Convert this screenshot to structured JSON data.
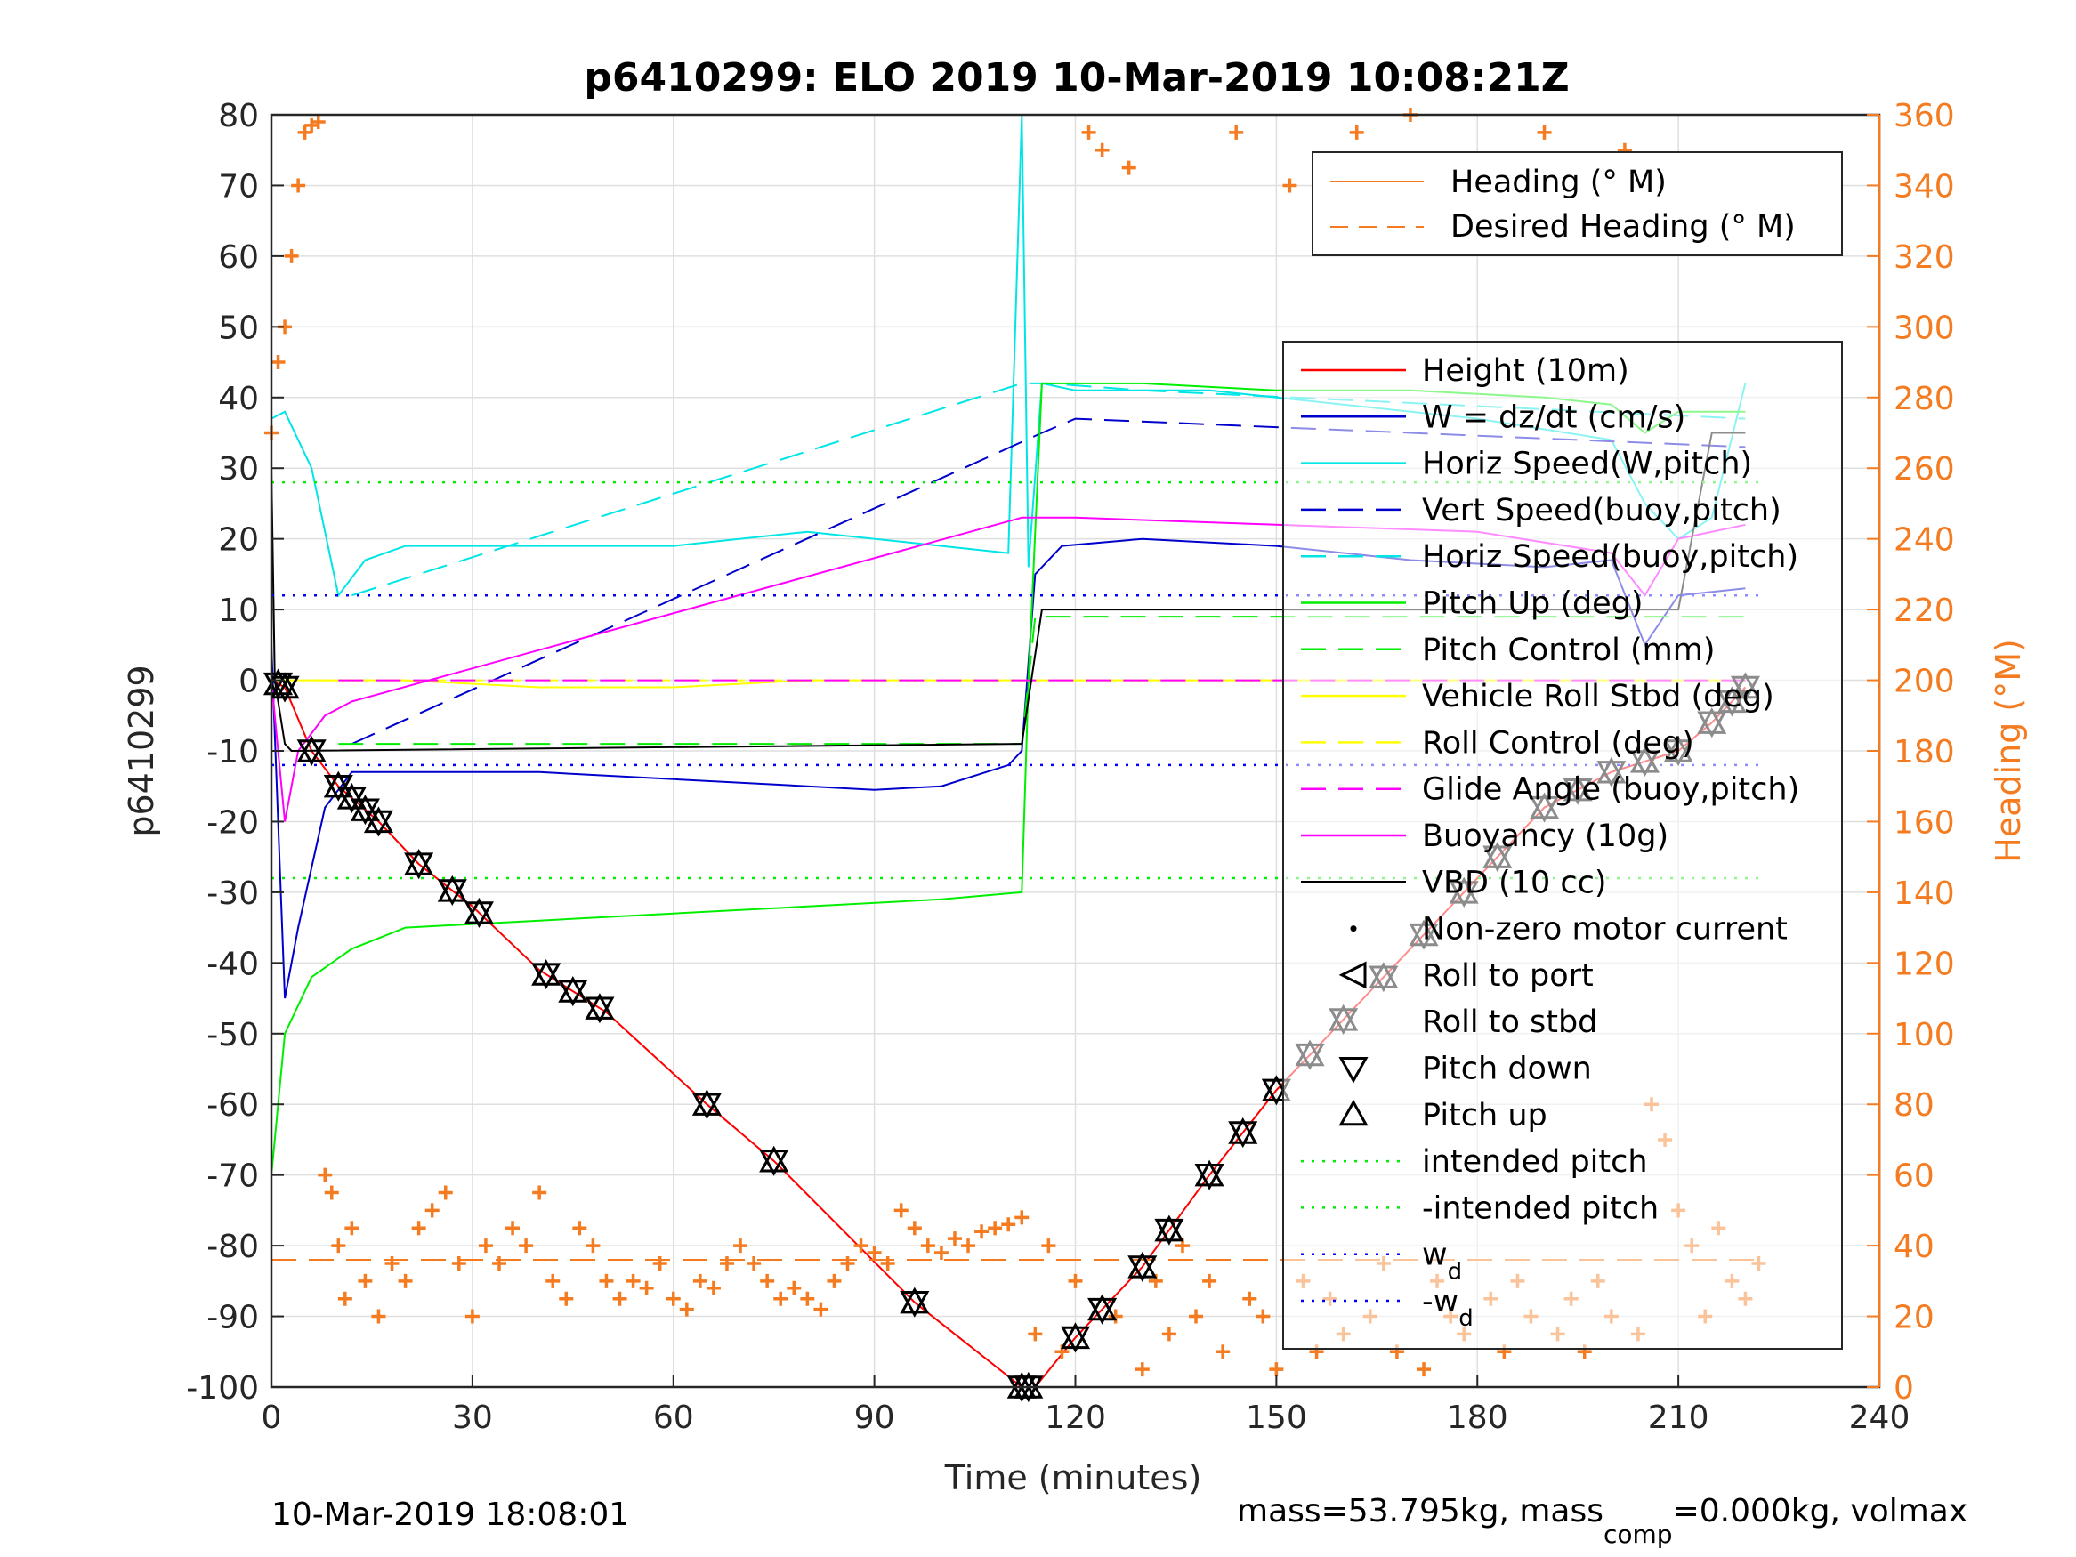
{
  "chart_data": {
    "type": "line",
    "title": "p6410299: ELO 2019 10-Mar-2019 10:08:21Z",
    "xlabel": "Time (minutes)",
    "ylabel": "p6410299",
    "y2label": "Heading (°M)",
    "xlim": [
      0,
      240
    ],
    "ylim": [
      -100,
      80
    ],
    "y2lim": [
      0,
      360
    ],
    "xticks": [
      "0",
      "30",
      "60",
      "90",
      "120",
      "150",
      "180",
      "210",
      "240"
    ],
    "yticks": [
      "-100",
      "-90",
      "-80",
      "-70",
      "-60",
      "-50",
      "-40",
      "-30",
      "-20",
      "-10",
      "0",
      "10",
      "20",
      "30",
      "40",
      "50",
      "60",
      "70",
      "80"
    ],
    "y2ticks": [
      "0",
      "20",
      "40",
      "60",
      "80",
      "100",
      "120",
      "140",
      "160",
      "180",
      "200",
      "220",
      "240",
      "260",
      "280",
      "300",
      "320",
      "340",
      "360"
    ],
    "grid": true,
    "legend_top": [
      "Heading (° M)",
      "Desired Heading (° M)"
    ],
    "legend_main": [
      "Height (10m)",
      "W = dz/dt (cm/s)",
      "Horiz Speed(W,pitch)",
      "Vert Speed(buoy,pitch)",
      "Horiz Speed(buoy,pitch)",
      "Pitch Up (deg)",
      "Pitch Control (mm)",
      "Vehicle Roll Stbd (deg)",
      "Roll Control (deg)",
      "Glide Angle (buoy,pitch)",
      "Buoyancy (10g)",
      "VBD (10 cc)",
      "Non-zero motor current",
      "Roll to port",
      "Roll to stbd",
      "Pitch down",
      "Pitch up",
      "intended pitch",
      "-intended pitch",
      "w",
      "-w"
    ],
    "legend_sub": [
      "d",
      "d"
    ],
    "footer_left": "10-Mar-2019 18:08:01",
    "footer_right_a": "mass=53.795kg, mass",
    "footer_right_sub": "comp",
    "footer_right_b": "=0.000kg, volmax",
    "series": [
      {
        "name": "Height (10m)",
        "color": "#ff0000",
        "style": "solid",
        "x": [
          0,
          2,
          6,
          10,
          16,
          22,
          30,
          40,
          50,
          65,
          75,
          96,
          112,
          114,
          120,
          130,
          140,
          150,
          160,
          170,
          180,
          190,
          200,
          210,
          215,
          220
        ],
        "y": [
          0,
          -1,
          -10,
          -15,
          -20,
          -26,
          -32,
          -41,
          -47,
          -60,
          -68,
          -88,
          -100,
          -100,
          -93,
          -83,
          -70,
          -58,
          -48,
          -38,
          -28,
          -18,
          -13,
          -10,
          -6,
          -1
        ]
      },
      {
        "name": "W = dz/dt (cm/s)",
        "color": "#0000cc",
        "style": "solid",
        "x": [
          0,
          2,
          4,
          8,
          12,
          20,
          40,
          60,
          70,
          80,
          90,
          100,
          110,
          112,
          114,
          118,
          130,
          150,
          170,
          190,
          200,
          205,
          210,
          220
        ],
        "y": [
          5,
          -45,
          -35,
          -18,
          -13,
          -13,
          -13,
          -14,
          -14.5,
          -15,
          -15.5,
          -15,
          -12,
          -10,
          15,
          19,
          20,
          19,
          17,
          16,
          17,
          5,
          12,
          13
        ]
      },
      {
        "name": "Horiz Speed(W,pitch)",
        "color": "#00e5e5",
        "style": "solid",
        "x": [
          0,
          2,
          6,
          10,
          14,
          20,
          40,
          60,
          80,
          100,
          110,
          112,
          113,
          115,
          120,
          140,
          160,
          180,
          200,
          205,
          210,
          215,
          220
        ],
        "y": [
          37,
          38,
          30,
          12,
          17,
          19,
          19,
          19,
          21,
          19,
          18,
          80,
          16,
          42,
          41,
          41,
          39,
          37,
          34,
          25,
          20,
          23,
          42
        ]
      },
      {
        "name": "Vert Speed(buoy,pitch)",
        "color": "#0000cc",
        "style": "dashed",
        "x": [
          12,
          115,
          120,
          220
        ],
        "y": [
          -9,
          35,
          37,
          33
        ]
      },
      {
        "name": "Horiz Speed(buoy,pitch)",
        "color": "#00e5e5",
        "style": "dashed",
        "x": [
          12,
          112,
          116,
          130,
          220
        ],
        "y": [
          12,
          42,
          42,
          41,
          37
        ]
      },
      {
        "name": "Pitch Up (deg)",
        "color": "#00ee00",
        "style": "solid",
        "x": [
          0,
          2,
          6,
          12,
          20,
          40,
          60,
          80,
          100,
          112,
          113,
          115,
          130,
          150,
          170,
          190,
          200,
          205,
          210,
          220
        ],
        "y": [
          -70,
          -50,
          -42,
          -38,
          -35,
          -34,
          -33,
          -32,
          -31,
          -30,
          0,
          42,
          42,
          41,
          41,
          40,
          39,
          35,
          38,
          38
        ]
      },
      {
        "name": "Pitch Control (mm)",
        "color": "#00ee00",
        "style": "dashed",
        "x": [
          10,
          112,
          114,
          220
        ],
        "y": [
          -9,
          -9,
          9,
          9
        ]
      },
      {
        "name": "Vehicle Roll Stbd (deg)",
        "color": "#ffff00",
        "style": "solid",
        "x": [
          0,
          10,
          20,
          40,
          60,
          80,
          100,
          112,
          115,
          130,
          150,
          170,
          190,
          205,
          210,
          220
        ],
        "y": [
          0,
          0,
          0,
          -1,
          -1,
          0,
          0,
          0,
          0,
          0,
          0,
          0,
          0,
          0,
          0,
          0
        ]
      },
      {
        "name": "Roll Control (deg)",
        "color": "#ffff00",
        "style": "dashed",
        "x": [
          0,
          220
        ],
        "y": [
          0,
          0
        ]
      },
      {
        "name": "Glide Angle (buoy,pitch)",
        "color": "#ff00ff",
        "style": "dashed",
        "x": [
          10,
          220
        ],
        "y": [
          0,
          0
        ]
      },
      {
        "name": "Buoyancy (10g)",
        "color": "#ff00ff",
        "style": "solid",
        "x": [
          0,
          2,
          4,
          8,
          12,
          112,
          120,
          150,
          180,
          200,
          205,
          210,
          220
        ],
        "y": [
          0,
          -20,
          -10,
          -5,
          -3,
          23,
          23,
          22,
          21,
          18,
          12,
          20,
          22
        ]
      },
      {
        "name": "VBD (10 cc)",
        "color": "#000000",
        "style": "solid",
        "x": [
          0,
          0.5,
          2,
          3,
          112,
          115,
          210,
          215,
          220
        ],
        "y": [
          30,
          0,
          -9,
          -10,
          -9,
          10,
          10,
          35,
          35
        ]
      },
      {
        "name": "intended pitch",
        "color": "#00ee00",
        "style": "dotted",
        "x": [
          0,
          222
        ],
        "y": [
          28,
          28
        ]
      },
      {
        "name": "-intended pitch",
        "color": "#00ee00",
        "style": "dotted",
        "x": [
          0,
          222
        ],
        "y": [
          -28,
          -28
        ]
      },
      {
        "name": "w_d",
        "color": "#0000ff",
        "style": "dotted",
        "x": [
          0,
          222
        ],
        "y": [
          12,
          12
        ]
      },
      {
        "name": "-w_d",
        "color": "#0000ff",
        "style": "dotted",
        "x": [
          0,
          222
        ],
        "y": [
          -12,
          -12
        ]
      },
      {
        "name": "Desired Heading (° M)",
        "color": "#f47b20",
        "style": "dashed",
        "axis": "right",
        "x": [
          0,
          222
        ],
        "y": [
          36,
          36
        ]
      }
    ],
    "heading": {
      "name": "Heading (° M)",
      "color": "#f47b20",
      "axis": "right",
      "x": [
        0,
        1,
        2,
        3,
        4,
        5,
        6,
        7,
        8,
        9,
        10,
        11,
        12,
        14,
        16,
        18,
        20,
        22,
        24,
        26,
        28,
        30,
        32,
        34,
        36,
        38,
        40,
        42,
        44,
        46,
        48,
        50,
        52,
        54,
        56,
        58,
        60,
        62,
        64,
        66,
        68,
        70,
        72,
        74,
        76,
        78,
        80,
        82,
        84,
        86,
        88,
        90,
        92,
        94,
        96,
        98,
        100,
        102,
        104,
        106,
        108,
        110,
        112,
        114,
        116,
        118,
        120,
        122,
        124,
        126,
        128,
        130,
        132,
        134,
        136,
        138,
        140,
        142,
        144,
        146,
        148,
        150,
        152,
        154,
        156,
        158,
        160,
        162,
        164,
        166,
        168,
        170,
        172,
        174,
        176,
        178,
        180,
        182,
        184,
        186,
        188,
        190,
        192,
        194,
        196,
        198,
        200,
        202,
        204,
        206,
        208,
        210,
        212,
        214,
        216,
        218,
        220,
        222
      ],
      "y": [
        270,
        290,
        300,
        320,
        340,
        355,
        357,
        358,
        60,
        55,
        40,
        25,
        45,
        30,
        20,
        35,
        30,
        45,
        50,
        55,
        35,
        20,
        40,
        35,
        45,
        40,
        55,
        30,
        25,
        45,
        40,
        30,
        25,
        30,
        28,
        35,
        25,
        22,
        30,
        28,
        35,
        40,
        35,
        30,
        25,
        28,
        25,
        22,
        30,
        35,
        40,
        38,
        35,
        50,
        45,
        40,
        38,
        42,
        40,
        44,
        45,
        46,
        48,
        15,
        40,
        10,
        30,
        355,
        350,
        20,
        345,
        5,
        30,
        15,
        40,
        20,
        30,
        10,
        355,
        25,
        20,
        5,
        340,
        30,
        10,
        25,
        15,
        355,
        20,
        35,
        10,
        360,
        5,
        30,
        20,
        15,
        340,
        25,
        10,
        30,
        20,
        355,
        15,
        25,
        10,
        30,
        20,
        350,
        15,
        80,
        70,
        50,
        40,
        20,
        45,
        30,
        25,
        35
      ]
    },
    "markers": {
      "pitch_x": [
        1,
        2,
        6,
        10,
        12,
        14,
        16,
        22,
        27,
        31,
        41,
        45,
        49,
        65,
        75,
        96,
        112,
        113,
        120,
        124,
        130,
        134,
        140,
        145,
        150,
        155,
        160,
        166,
        172,
        178,
        183,
        190,
        195,
        200,
        205,
        210,
        215,
        218,
        220
      ]
    }
  }
}
